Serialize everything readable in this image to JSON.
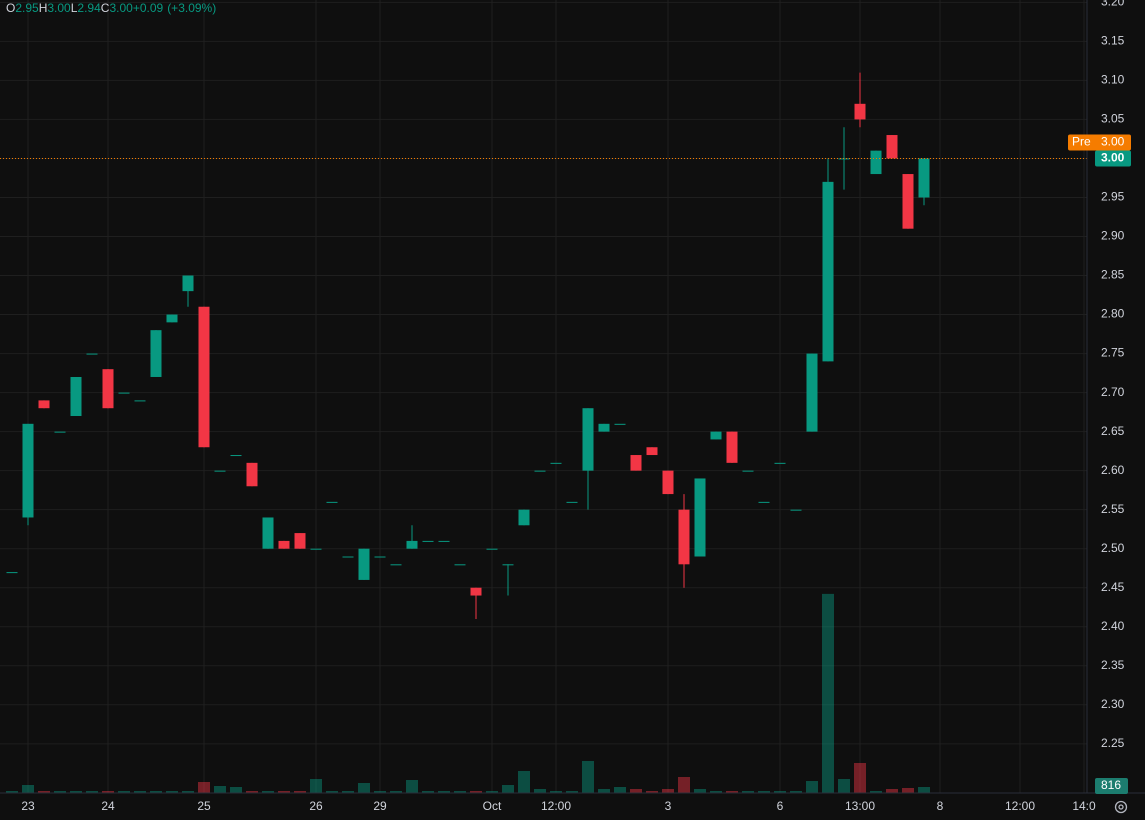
{
  "chart_data": {
    "type": "candlestick",
    "categories": [
      null,
      "23",
      null,
      null,
      null,
      null,
      "24",
      null,
      null,
      null,
      null,
      null,
      "25",
      null,
      null,
      null,
      null,
      null,
      null,
      "26",
      null,
      null,
      null,
      "29",
      null,
      null,
      null,
      null,
      null,
      null,
      "Oct",
      null,
      null,
      null,
      "12:00",
      null,
      null,
      null,
      null,
      null,
      null,
      "3",
      null,
      null,
      null,
      null,
      null,
      null,
      "6",
      null,
      null,
      null,
      null,
      "13:00",
      null,
      null,
      null,
      null,
      "8",
      null,
      null,
      null,
      null,
      "12:00",
      null,
      null,
      null,
      "14:0"
    ],
    "open": [
      2.47,
      2.54,
      2.69,
      2.65,
      2.67,
      2.75,
      2.73,
      2.7,
      2.69,
      2.72,
      2.79,
      2.83,
      2.81,
      2.6,
      2.62,
      2.61,
      2.5,
      2.51,
      2.52,
      2.5,
      2.56,
      2.49,
      2.46,
      2.49,
      2.48,
      2.5,
      2.51,
      2.51,
      2.48,
      2.45,
      2.5,
      2.48,
      2.53,
      2.6,
      2.61,
      2.56,
      2.6,
      2.65,
      2.66,
      2.62,
      2.63,
      2.6,
      2.55,
      2.49,
      2.64,
      2.65,
      2.6,
      2.56,
      2.61,
      2.55,
      2.65,
      2.74,
      3.0,
      3.07,
      2.98,
      3.03,
      2.98,
      2.95,
      null,
      null,
      null,
      null,
      null,
      null,
      null,
      null,
      null,
      null
    ],
    "high": [
      2.47,
      2.66,
      2.69,
      2.65,
      2.72,
      2.75,
      2.73,
      2.7,
      2.69,
      2.78,
      2.8,
      2.85,
      2.81,
      2.6,
      2.62,
      2.61,
      2.54,
      2.51,
      2.52,
      2.5,
      2.56,
      2.49,
      2.5,
      2.49,
      2.48,
      2.53,
      2.51,
      2.51,
      2.48,
      2.45,
      2.5,
      2.48,
      2.55,
      2.6,
      2.61,
      2.56,
      2.68,
      2.66,
      2.66,
      2.62,
      2.63,
      2.6,
      2.57,
      2.59,
      2.65,
      2.65,
      2.6,
      2.56,
      2.61,
      2.55,
      2.75,
      3.0,
      3.04,
      3.11,
      3.01,
      3.03,
      2.98,
      3.0,
      null,
      null,
      null,
      null,
      null,
      null,
      null,
      null,
      null,
      null
    ],
    "low": [
      2.47,
      2.53,
      2.68,
      2.65,
      2.67,
      2.75,
      2.68,
      2.7,
      2.69,
      2.72,
      2.79,
      2.81,
      2.63,
      2.6,
      2.62,
      2.58,
      2.5,
      2.5,
      2.5,
      2.5,
      2.56,
      2.49,
      2.46,
      2.49,
      2.48,
      2.5,
      2.51,
      2.51,
      2.48,
      2.41,
      2.5,
      2.44,
      2.53,
      2.6,
      2.61,
      2.56,
      2.55,
      2.65,
      2.66,
      2.6,
      2.62,
      2.57,
      2.45,
      2.49,
      2.64,
      2.61,
      2.6,
      2.56,
      2.61,
      2.55,
      2.65,
      2.74,
      2.96,
      3.04,
      2.98,
      3.0,
      2.91,
      2.94,
      null,
      null,
      null,
      null,
      null,
      null,
      null,
      null,
      null,
      null
    ],
    "close": [
      2.47,
      2.66,
      2.68,
      2.65,
      2.72,
      2.75,
      2.68,
      2.7,
      2.69,
      2.78,
      2.8,
      2.85,
      2.63,
      2.6,
      2.62,
      2.58,
      2.54,
      2.5,
      2.5,
      2.5,
      2.56,
      2.49,
      2.5,
      2.49,
      2.48,
      2.51,
      2.51,
      2.51,
      2.48,
      2.44,
      2.5,
      2.48,
      2.55,
      2.6,
      2.61,
      2.56,
      2.68,
      2.66,
      2.66,
      2.6,
      2.62,
      2.57,
      2.48,
      2.59,
      2.65,
      2.61,
      2.6,
      2.56,
      2.61,
      2.55,
      2.75,
      2.97,
      3.0,
      3.05,
      3.01,
      3.0,
      2.91,
      3.0,
      null,
      null,
      null,
      null,
      null,
      null,
      null,
      null,
      null,
      null
    ],
    "volume": [
      272,
      1088,
      272,
      272,
      272,
      272,
      272,
      272,
      272,
      272,
      272,
      272,
      1496,
      952,
      816,
      272,
      272,
      272,
      272,
      1904,
      272,
      272,
      1360,
      272,
      272,
      1768,
      272,
      272,
      272,
      272,
      272,
      1088,
      2992,
      544,
      272,
      272,
      4352,
      544,
      816,
      544,
      272,
      544,
      2176,
      544,
      272,
      272,
      272,
      272,
      272,
      272,
      1632,
      27064,
      1904,
      4080,
      272,
      544,
      680,
      816,
      null,
      null,
      null,
      null,
      null,
      null,
      null,
      null,
      null,
      null
    ],
    "ylim": [
      2.187,
      3.203
    ],
    "yticks": [
      2.25,
      {
        "value": 2.3,
        "label": "2.30"
      },
      2.35,
      {
        "value": 2.4,
        "label": "2.40"
      },
      2.45,
      {
        "value": 2.5,
        "label": "2.50"
      },
      2.55,
      {
        "value": 2.6,
        "label": "2.60"
      },
      2.65,
      {
        "value": 2.7,
        "label": "2.70"
      },
      2.75,
      {
        "value": 2.8,
        "label": "2.80"
      },
      2.85,
      {
        "value": 2.9,
        "label": "2.90"
      },
      2.95,
      {
        "value": 3.0,
        "label": "3.00"
      },
      3.05,
      {
        "value": 3.1,
        "label": "3.10"
      },
      3.15,
      {
        "value": 3.2,
        "label": "3.20"
      }
    ],
    "volume_lim": [
      0,
      28000
    ],
    "up_color": "#089981",
    "down_color": "#f23645",
    "grid": true,
    "ohlc_legend": [
      {
        "key": "O",
        "text": "2.95"
      },
      {
        "key": "H",
        "text": "3.00"
      },
      {
        "key": "L",
        "text": "2.94"
      },
      {
        "key": "C",
        "text": "3.00"
      }
    ],
    "change": "+0.09",
    "change_pct": "(+3.09%)",
    "last_price": {
      "value": 3.0,
      "label": "3.00"
    },
    "premarket": {
      "name": "Pre",
      "value": 3.0,
      "label": "3.00",
      "color": "#f57c00"
    }
  }
}
